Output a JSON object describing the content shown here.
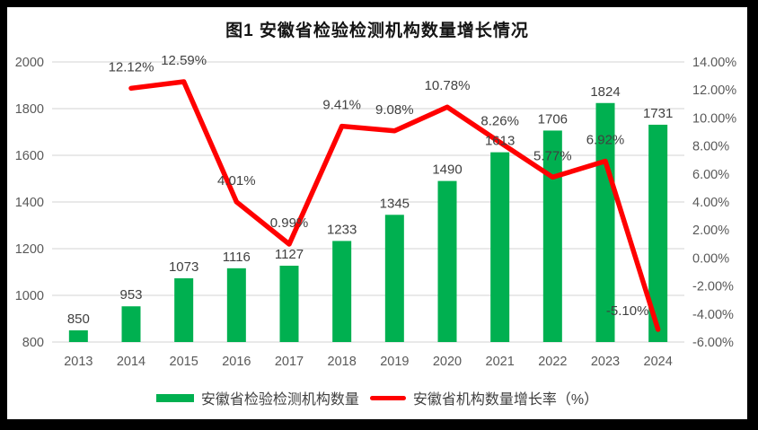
{
  "chart_data": {
    "type": "combo",
    "title": "图1 安徽省检验检测机构数量增长情况",
    "categories": [
      "2013",
      "2014",
      "2015",
      "2016",
      "2017",
      "2018",
      "2019",
      "2020",
      "2021",
      "2022",
      "2023",
      "2024"
    ],
    "series": [
      {
        "name": "安徽省检验检测机构数量",
        "type": "bar",
        "axis": "left",
        "values": [
          850,
          953,
          1073,
          1116,
          1127,
          1233,
          1345,
          1490,
          1613,
          1706,
          1824,
          1731
        ]
      },
      {
        "name": "安徽省机构数量增长率（%）",
        "type": "line",
        "axis": "right",
        "label_format": "percent_2dp",
        "values": [
          null,
          12.12,
          12.59,
          4.01,
          0.99,
          9.41,
          9.08,
          10.78,
          8.26,
          5.77,
          6.92,
          -5.1
        ]
      }
    ],
    "left_axis": {
      "min": 800,
      "max": 2000,
      "step": 200
    },
    "right_axis": {
      "min": -6,
      "max": 14,
      "step": 2,
      "format": "percent_2dp"
    },
    "grid": true,
    "legend_position": "bottom",
    "colors": {
      "bar": "#00B050",
      "line": "#FF0000",
      "grid": "#DCDCDC",
      "axis_text": "#595959",
      "label_text": "#404040",
      "title_text": "#141414",
      "frame": "#000000",
      "background": "#FFFFFF"
    }
  }
}
